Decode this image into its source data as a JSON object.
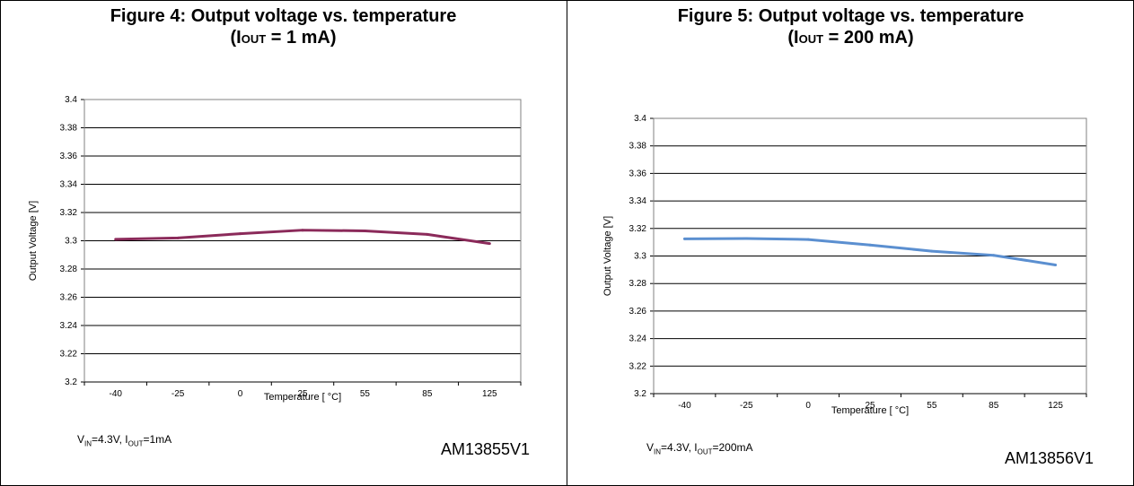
{
  "chart_data": [
    {
      "type": "line",
      "title": "Figure 4: Output voltage vs. temperature",
      "subtitle": {
        "prefix": "(I",
        "sub": "OUT",
        "suffix": " = 1 mA)"
      },
      "xlabel": "Temperature [ °C]",
      "ylabel": "Output Voltage [V]",
      "categories": [
        "-40",
        "-25",
        "0",
        "25",
        "55",
        "85",
        "125"
      ],
      "yticks": [
        "3.4",
        "3.38",
        "3.36",
        "3.34",
        "3.32",
        "3.3",
        "3.28",
        "3.26",
        "3.24",
        "3.22",
        "3.2"
      ],
      "ylim": [
        3.2,
        3.4
      ],
      "grid": true,
      "series": [
        {
          "values": [
            3.301,
            3.302,
            3.305,
            3.3075,
            3.307,
            3.3045,
            3.298
          ],
          "color": "#8b2a5a"
        }
      ],
      "conditions": {
        "vin_label": "V",
        "vin_sub": "IN",
        "vin_value": "=4.3V, I",
        "iout_sub": "OUT",
        "iout_value": "=1mA"
      },
      "code": "AM13855V1"
    },
    {
      "type": "line",
      "title": "Figure 5: Output voltage vs. temperature",
      "subtitle": {
        "prefix": "(I",
        "sub": "OUT",
        "suffix": " = 200 mA)"
      },
      "xlabel": "Temperature [ °C]",
      "ylabel": "Output Voltage [V]",
      "categories": [
        "-40",
        "-25",
        "0",
        "25",
        "55",
        "85",
        "125"
      ],
      "yticks": [
        "3.4",
        "3.38",
        "3.36",
        "3.34",
        "3.32",
        "3.3",
        "3.28",
        "3.26",
        "3.24",
        "3.22",
        "3.2"
      ],
      "ylim": [
        3.2,
        3.4
      ],
      "grid": true,
      "series": [
        {
          "values": [
            3.3125,
            3.3127,
            3.312,
            3.308,
            3.3035,
            3.3005,
            3.2935
          ],
          "color": "#5b8fd0"
        }
      ],
      "conditions": {
        "vin_label": "V",
        "vin_sub": "IN",
        "vin_value": "=4.3V, I",
        "iout_sub": "OUT",
        "iout_value": "=200mA"
      },
      "code": "AM13856V1"
    }
  ]
}
